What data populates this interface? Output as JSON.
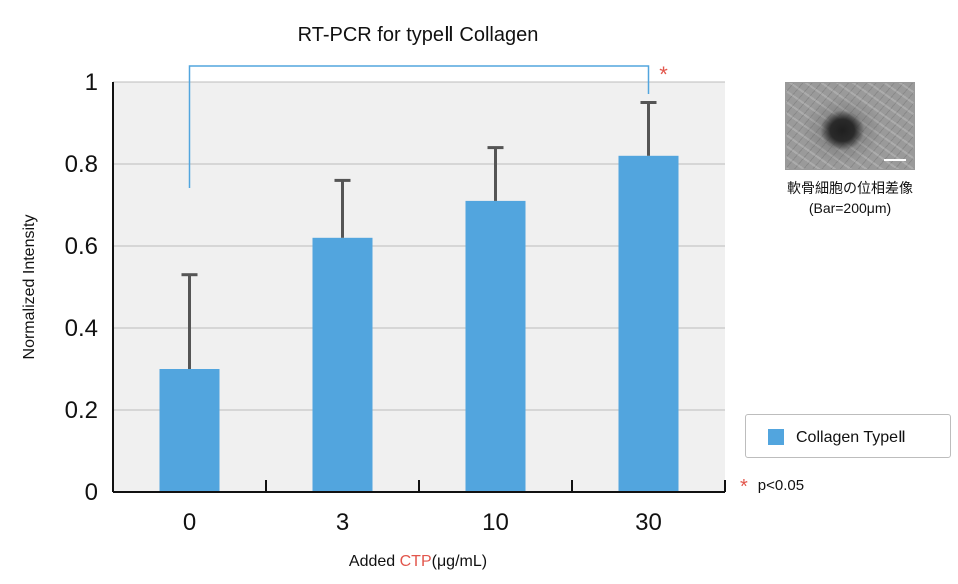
{
  "chart_data": {
    "type": "bar",
    "title": "RT-PCR for typeⅡ Collagen",
    "xlabel_prefix": "Added ",
    "xlabel_highlight": "CTP",
    "xlabel_suffix": "(μg/mL)",
    "ylabel": "Normalized Intensity",
    "categories": [
      "0",
      "3",
      "10",
      "30"
    ],
    "series": [
      {
        "name": "Collagen TypeⅡ",
        "values": [
          0.3,
          0.62,
          0.71,
          0.82
        ],
        "errors": [
          0.23,
          0.14,
          0.13,
          0.13
        ]
      }
    ],
    "ylim": [
      0,
      1
    ],
    "yticks": [
      {
        "value": 0,
        "label": "0"
      },
      {
        "value": 0.2,
        "label": "0.2"
      },
      {
        "value": 0.4,
        "label": "0.4"
      },
      {
        "value": 0.6,
        "label": "0.6"
      },
      {
        "value": 0.8,
        "label": "0.8"
      },
      {
        "value": 1,
        "label": "1"
      }
    ],
    "grid": true,
    "significance": {
      "from_category": 0,
      "to_category": 3,
      "marker": "*",
      "note": "p<0.05"
    },
    "colors": {
      "bar": "#52a5de",
      "error_bar": "#555555",
      "grid": "#bdbdbd",
      "plot_bg": "#f0f0f0",
      "bracket": "#52a5de",
      "star": "#e2564c",
      "highlight": "#e2564c"
    },
    "legend_position": "right"
  },
  "photo": {
    "caption_line1": "軟骨細胞の位相差像",
    "caption_line2": "(Bar=200μm)"
  }
}
